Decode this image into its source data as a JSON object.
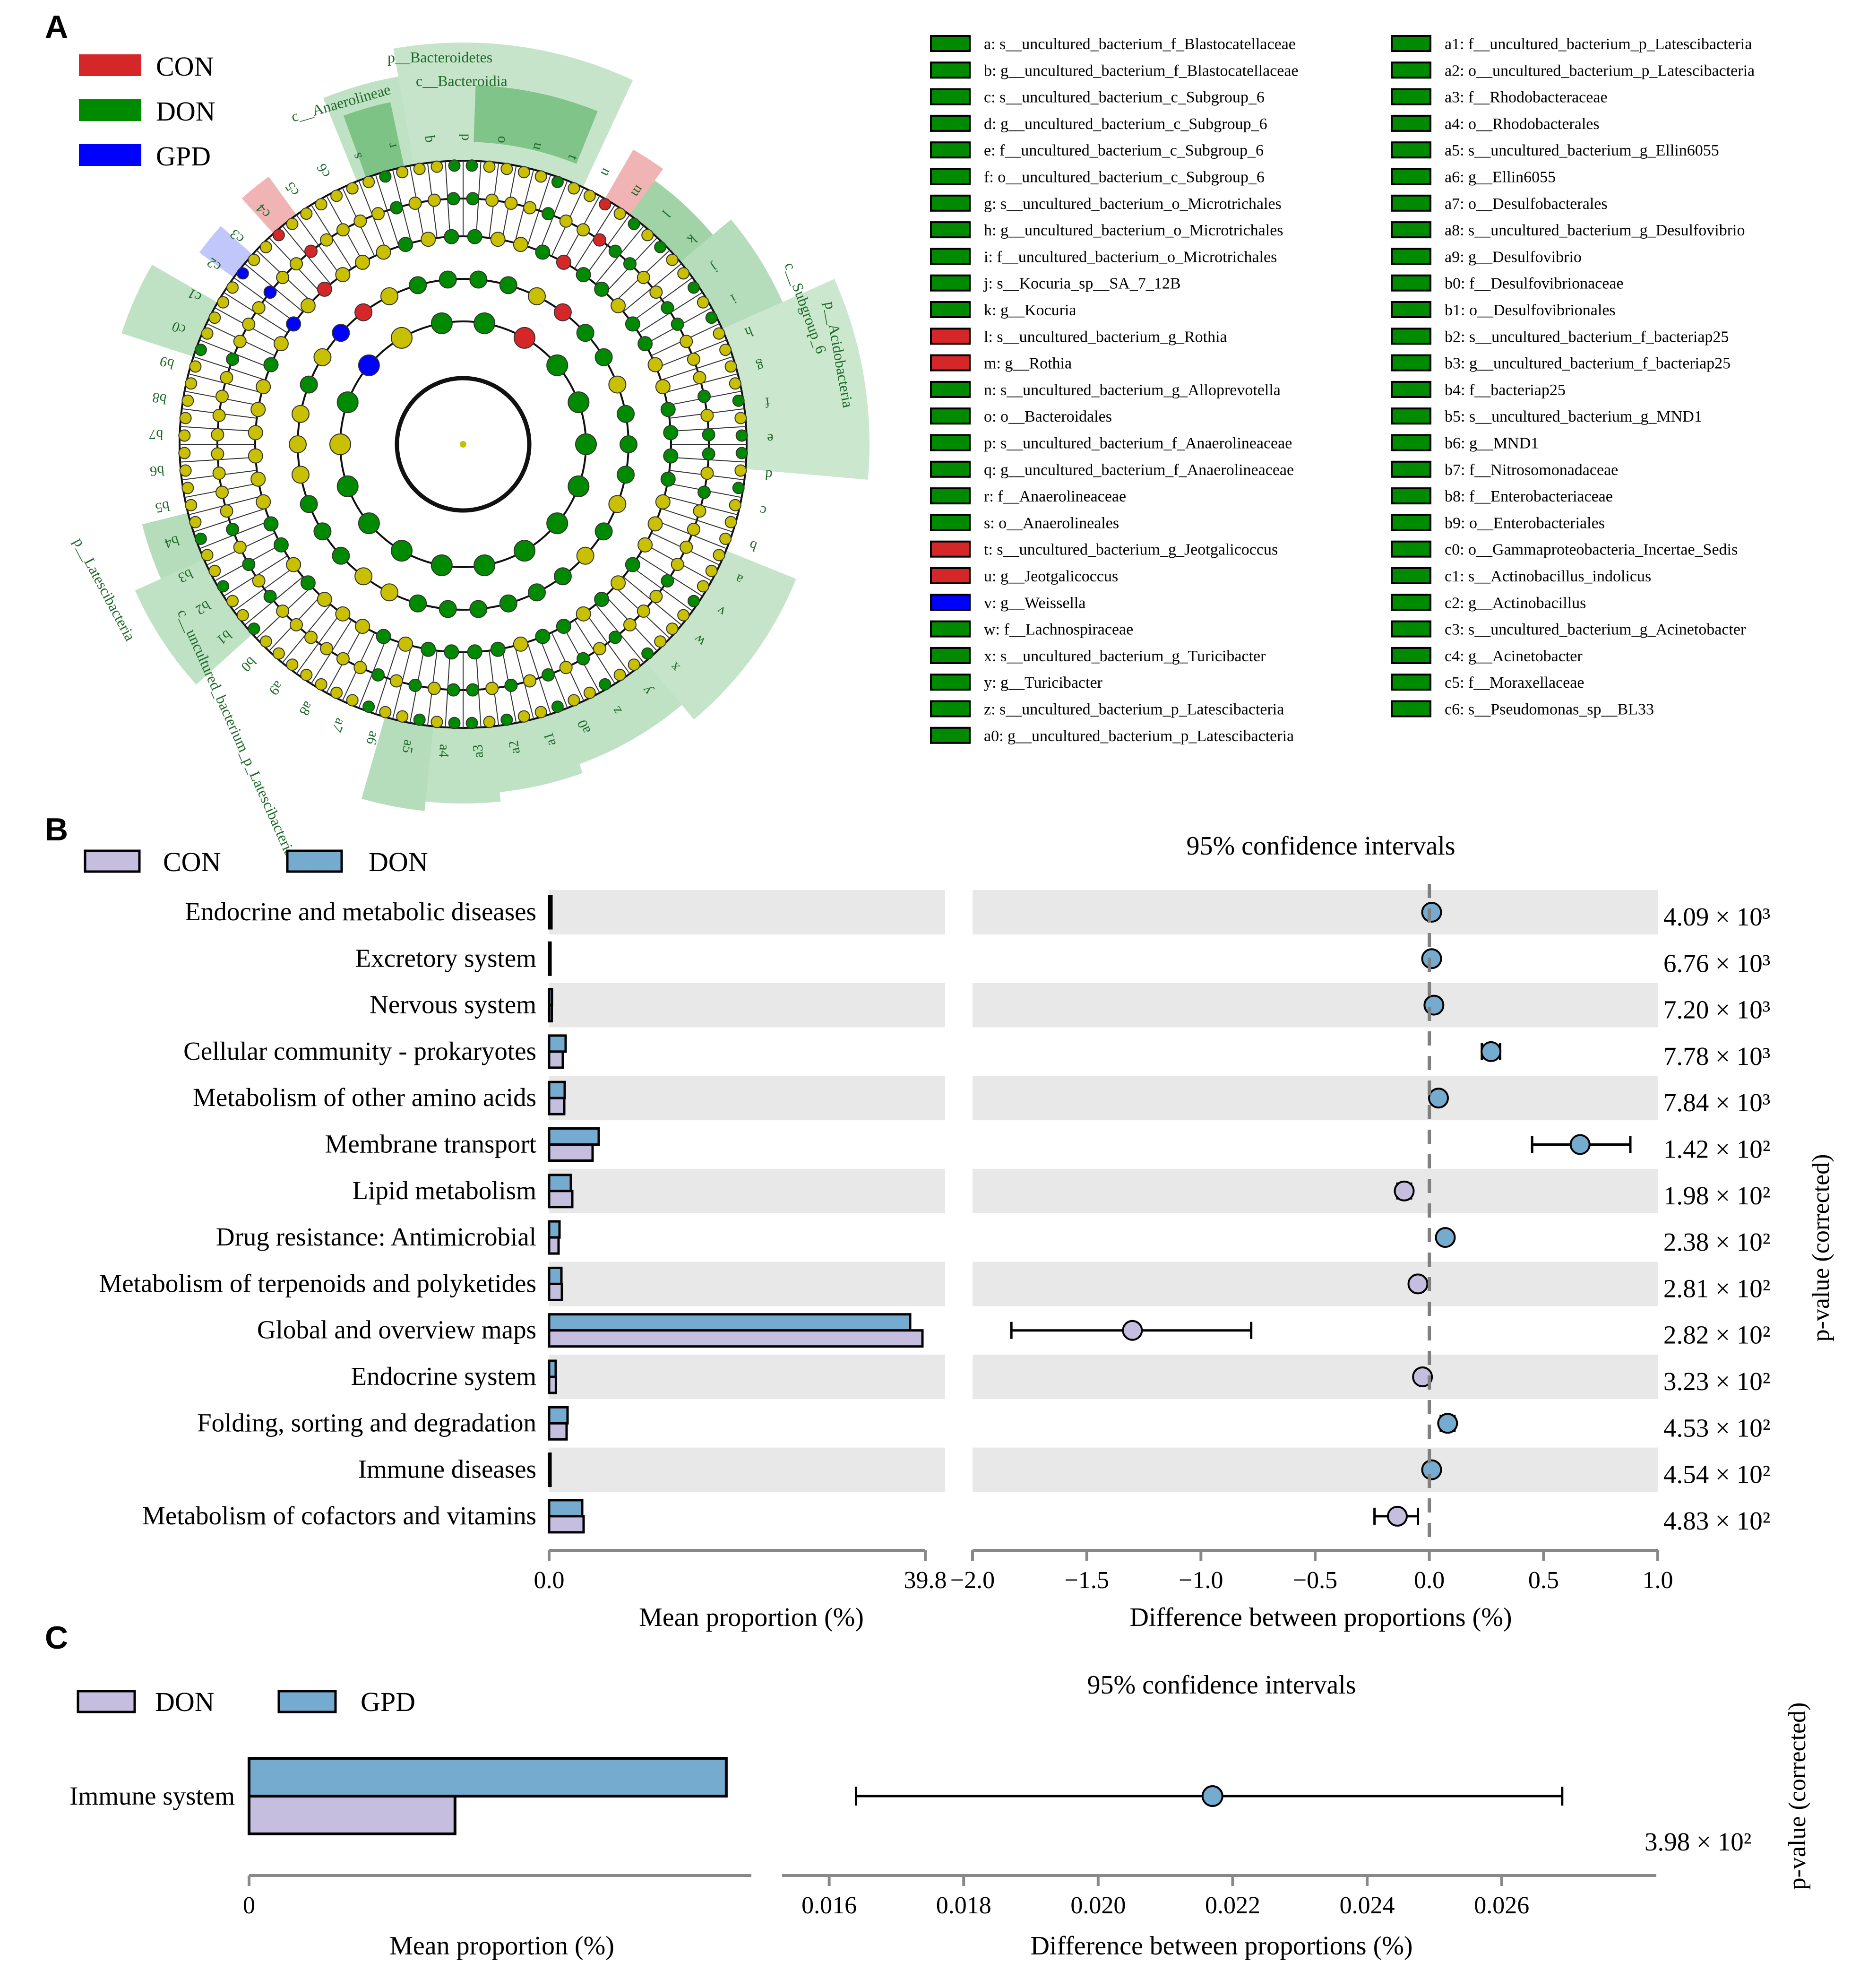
{
  "panels": {
    "a": {
      "letter": "A",
      "legend": [
        {
          "label": "CON",
          "color": "#d62728"
        },
        {
          "label": "DON",
          "color": "#008a00"
        },
        {
          "label": "GPD",
          "color": "#0000ff"
        }
      ],
      "clade_labels": {
        "bacteroidetes": "p__Bacteroidetes",
        "bacteroidia": "c__Bacteroidia",
        "anaerolineae": "c__Anaerolineae",
        "acidobacteria": "p__Acidobacteria",
        "subgroup6": "c__Subgroup_6",
        "latescibacteria": "p__Latescibacteria",
        "uncultured_lat": "c__uncultured_bacterium_p_Latescibacteria"
      },
      "ring_letters": [
        "s",
        "r",
        "q",
        "p",
        "o",
        "u",
        "t",
        "n",
        "m",
        "l",
        "k",
        "j",
        "i",
        "h",
        "g",
        "f",
        "e",
        "d",
        "c",
        "b",
        "a",
        "v",
        "w",
        "x",
        "y",
        "z",
        "a0",
        "a1",
        "a2",
        "a3",
        "a4",
        "a5",
        "a6",
        "a7",
        "a8",
        "a9",
        "b0",
        "b1",
        "b2",
        "b3",
        "b4",
        "b5",
        "b6",
        "b7",
        "b8",
        "b9",
        "c0",
        "c1",
        "c2",
        "c3",
        "c4",
        "c5",
        "c6"
      ],
      "taxa_legend": [
        {
          "key": "a",
          "label": "a: s__uncultured_bacterium_f_Blastocatellaceae",
          "group": "DON"
        },
        {
          "key": "b",
          "label": "b: g__uncultured_bacterium_f_Blastocatellaceae",
          "group": "DON"
        },
        {
          "key": "c",
          "label": "c: s__uncultured_bacterium_c_Subgroup_6",
          "group": "DON"
        },
        {
          "key": "d",
          "label": "d: g__uncultured_bacterium_c_Subgroup_6",
          "group": "DON"
        },
        {
          "key": "e",
          "label": "e: f__uncultured_bacterium_c_Subgroup_6",
          "group": "DON"
        },
        {
          "key": "f",
          "label": "f: o__uncultured_bacterium_c_Subgroup_6",
          "group": "DON"
        },
        {
          "key": "g",
          "label": "g: s__uncultured_bacterium_o_Microtrichales",
          "group": "DON"
        },
        {
          "key": "h",
          "label": "h: g__uncultured_bacterium_o_Microtrichales",
          "group": "DON"
        },
        {
          "key": "i",
          "label": "i: f__uncultured_bacterium_o_Microtrichales",
          "group": "DON"
        },
        {
          "key": "j",
          "label": "j: s__Kocuria_sp__SA_7_12B",
          "group": "DON"
        },
        {
          "key": "k",
          "label": "k: g__Kocuria",
          "group": "DON"
        },
        {
          "key": "l",
          "label": "l: s__uncultured_bacterium_g_Rothia",
          "group": "CON"
        },
        {
          "key": "m",
          "label": "m: g__Rothia",
          "group": "CON"
        },
        {
          "key": "n",
          "label": "n: s__uncultured_bacterium_g_Alloprevotella",
          "group": "DON"
        },
        {
          "key": "o",
          "label": "o: o__Bacteroidales",
          "group": "DON"
        },
        {
          "key": "p",
          "label": "p: s__uncultured_bacterium_f_Anaerolineaceae",
          "group": "DON"
        },
        {
          "key": "q",
          "label": "q: g__uncultured_bacterium_f_Anaerolineaceae",
          "group": "DON"
        },
        {
          "key": "r",
          "label": "r: f__Anaerolineaceae",
          "group": "DON"
        },
        {
          "key": "s",
          "label": "s: o__Anaerolineales",
          "group": "DON"
        },
        {
          "key": "t",
          "label": "t: s__uncultured_bacterium_g_Jeotgalicoccus",
          "group": "CON"
        },
        {
          "key": "u",
          "label": "u: g__Jeotgalicoccus",
          "group": "CON"
        },
        {
          "key": "v",
          "label": "v: g__Weissella",
          "group": "GPD"
        },
        {
          "key": "w",
          "label": "w: f__Lachnospiraceae",
          "group": "DON"
        },
        {
          "key": "x",
          "label": "x: s__uncultured_bacterium_g_Turicibacter",
          "group": "DON"
        },
        {
          "key": "y",
          "label": "y: g__Turicibacter",
          "group": "DON"
        },
        {
          "key": "z",
          "label": "z: s__uncultured_bacterium_p_Latescibacteria",
          "group": "DON"
        },
        {
          "key": "a0",
          "label": "a0: g__uncultured_bacterium_p_Latescibacteria",
          "group": "DON"
        },
        {
          "key": "a1",
          "label": "a1: f__uncultured_bacterium_p_Latescibacteria",
          "group": "DON"
        },
        {
          "key": "a2",
          "label": "a2: o__uncultured_bacterium_p_Latescibacteria",
          "group": "DON"
        },
        {
          "key": "a3",
          "label": "a3: f__Rhodobacteraceae",
          "group": "DON"
        },
        {
          "key": "a4",
          "label": "a4: o__Rhodobacterales",
          "group": "DON"
        },
        {
          "key": "a5",
          "label": "a5: s__uncultured_bacterium_g_Ellin6055",
          "group": "DON"
        },
        {
          "key": "a6",
          "label": "a6: g__Ellin6055",
          "group": "DON"
        },
        {
          "key": "a7",
          "label": "a7: o__Desulfobacterales",
          "group": "DON"
        },
        {
          "key": "a8",
          "label": "a8: s__uncultured_bacterium_g_Desulfovibrio",
          "group": "DON"
        },
        {
          "key": "a9",
          "label": "a9: g__Desulfovibrio",
          "group": "DON"
        },
        {
          "key": "b0",
          "label": "b0: f__Desulfovibrionaceae",
          "group": "DON"
        },
        {
          "key": "b1",
          "label": "b1: o__Desulfovibrionales",
          "group": "DON"
        },
        {
          "key": "b2",
          "label": "b2: s__uncultured_bacterium_f_bacteriap25",
          "group": "DON"
        },
        {
          "key": "b3",
          "label": "b3: g__uncultured_bacterium_f_bacteriap25",
          "group": "DON"
        },
        {
          "key": "b4",
          "label": "b4: f__bacteriap25",
          "group": "DON"
        },
        {
          "key": "b5",
          "label": "b5: s__uncultured_bacterium_g_MND1",
          "group": "DON"
        },
        {
          "key": "b6",
          "label": "b6: g__MND1",
          "group": "DON"
        },
        {
          "key": "b7",
          "label": "b7: f__Nitrosomonadaceae",
          "group": "DON"
        },
        {
          "key": "b8",
          "label": "b8: f__Enterobacteriaceae",
          "group": "DON"
        },
        {
          "key": "b9",
          "label": "b9: o__Enterobacteriales",
          "group": "DON"
        },
        {
          "key": "c0",
          "label": "c0: o__Gammaproteobacteria_Incertae_Sedis",
          "group": "DON"
        },
        {
          "key": "c1",
          "label": "c1: s__Actinobacillus_indolicus",
          "group": "DON"
        },
        {
          "key": "c2",
          "label": "c2: g__Actinobacillus",
          "group": "DON"
        },
        {
          "key": "c3",
          "label": "c3: s__uncultured_bacterium_g_Acinetobacter",
          "group": "DON"
        },
        {
          "key": "c4",
          "label": "c4: g__Acinetobacter",
          "group": "DON"
        },
        {
          "key": "c5",
          "label": "c5: f__Moraxellaceae",
          "group": "DON"
        },
        {
          "key": "c6",
          "label": "c6: s__Pseudomonas_sp__BL33",
          "group": "DON"
        }
      ]
    },
    "b": {
      "letter": "B",
      "legend": [
        {
          "label": "CON",
          "color": "#c5bedf"
        },
        {
          "label": "DON",
          "color": "#76abd0"
        }
      ],
      "ci_title": "95% confidence intervals",
      "pvalue_label": "p-value (corrected)"
    },
    "c": {
      "letter": "C",
      "legend": [
        {
          "label": "DON",
          "color": "#c5bedf"
        },
        {
          "label": "GPD",
          "color": "#76abd0"
        }
      ],
      "ci_title": "95% confidence intervals",
      "pvalue_label": "p-value (corrected)"
    }
  },
  "chart_data": [
    {
      "type": "bar",
      "panel": "B-left",
      "title": "",
      "xlabel": "Mean proportion (%)",
      "xlim": [
        0,
        39.8
      ],
      "tick_labels": [
        "0.0",
        "39.8"
      ],
      "categories": [
        "Endocrine and metabolic diseases",
        "Excretory system",
        "Nervous system",
        "Cellular community - prokaryotes",
        "Metabolism of other amino acids",
        "Membrane transport",
        "Lipid metabolism",
        "Drug resistance: Antimicrobial",
        "Metabolism of terpenoids and polyketides",
        "Global and overview maps",
        "Endocrine system",
        "Folding, sorting and degradation",
        "Immune diseases",
        "Metabolism of cofactors and vitamins"
      ],
      "series": [
        {
          "name": "DON",
          "color": "#76abd0",
          "values": [
            0.25,
            0.12,
            0.3,
            1.75,
            1.65,
            5.25,
            2.3,
            1.1,
            1.3,
            38.2,
            0.7,
            1.95,
            0.12,
            3.5
          ]
        },
        {
          "name": "CON",
          "color": "#c5bedf",
          "values": [
            0.25,
            0.12,
            0.28,
            1.45,
            1.6,
            4.6,
            2.45,
            1.0,
            1.35,
            39.5,
            0.72,
            1.85,
            0.1,
            3.65
          ]
        }
      ]
    },
    {
      "type": "scatter",
      "panel": "B-right",
      "title": "95% confidence intervals",
      "xlabel": "Difference between proportions (%)",
      "xlim": [
        -2.0,
        1.0
      ],
      "ticks": [
        -2.0,
        -1.5,
        -1.0,
        -0.5,
        0.0,
        0.5,
        1.0
      ],
      "tick_labels": [
        "−2.0",
        "−1.5",
        "−1.0",
        "−0.5",
        "0.0",
        "0.5",
        "1.0"
      ],
      "categories": [
        "Endocrine and metabolic diseases",
        "Excretory system",
        "Nervous system",
        "Cellular community - prokaryotes",
        "Metabolism of other amino acids",
        "Membrane transport",
        "Lipid metabolism",
        "Drug resistance: Antimicrobial",
        "Metabolism of terpenoids and polyketides",
        "Global and overview maps",
        "Endocrine system",
        "Folding, sorting and degradation",
        "Immune diseases",
        "Metabolism of cofactors and vitamins"
      ],
      "diff": [
        0.01,
        0.01,
        0.02,
        0.27,
        0.04,
        0.66,
        -0.11,
        0.07,
        -0.05,
        -1.3,
        -0.03,
        0.08,
        0.01,
        -0.14
      ],
      "ci_low": [
        0.0,
        0.0,
        0.01,
        0.23,
        0.03,
        0.45,
        -0.14,
        0.05,
        -0.07,
        -1.83,
        -0.05,
        0.05,
        0.0,
        -0.24
      ],
      "ci_high": [
        0.02,
        0.02,
        0.03,
        0.31,
        0.05,
        0.88,
        -0.08,
        0.09,
        -0.03,
        -0.78,
        -0.01,
        0.11,
        0.02,
        -0.05
      ],
      "favoured": [
        "DON",
        "DON",
        "DON",
        "DON",
        "DON",
        "DON",
        "CON",
        "DON",
        "CON",
        "CON",
        "CON",
        "DON",
        "DON",
        "CON"
      ],
      "pvalue_labels": [
        "4.09 × 10³",
        "6.76 × 10³",
        "7.20 × 10³",
        "7.78 × 10³",
        "7.84 × 10³",
        "1.42 × 10²",
        "1.98 × 10²",
        "2.38 × 10²",
        "2.81 × 10²",
        "2.82 × 10²",
        "3.23 × 10²",
        "4.53 × 10²",
        "4.54 × 10²",
        "4.83 × 10²"
      ]
    },
    {
      "type": "bar",
      "panel": "C-left",
      "xlabel": "Mean proportion (%)",
      "xlim": [
        0,
        1
      ],
      "tick_labels": [
        "0"
      ],
      "categories": [
        "Immune system"
      ],
      "series": [
        {
          "name": "GPD",
          "color": "#76abd0",
          "values": [
            0.95
          ]
        },
        {
          "name": "DON",
          "color": "#c5bedf",
          "values": [
            0.41
          ]
        }
      ]
    },
    {
      "type": "scatter",
      "panel": "C-right",
      "title": "95% confidence intervals",
      "xlabel": "Difference between proportions (%)",
      "xlim": [
        0.0153,
        0.0283
      ],
      "ticks": [
        0.016,
        0.018,
        0.02,
        0.022,
        0.024,
        0.026
      ],
      "tick_labels": [
        "0.016",
        "0.018",
        "0.020",
        "0.022",
        "0.024",
        "0.026"
      ],
      "categories": [
        "Immune system"
      ],
      "diff": [
        0.0217
      ],
      "ci_low": [
        0.0164
      ],
      "ci_high": [
        0.0269
      ],
      "favoured": [
        "GPD"
      ],
      "pvalue_labels": [
        "3.98 × 10²"
      ]
    }
  ]
}
